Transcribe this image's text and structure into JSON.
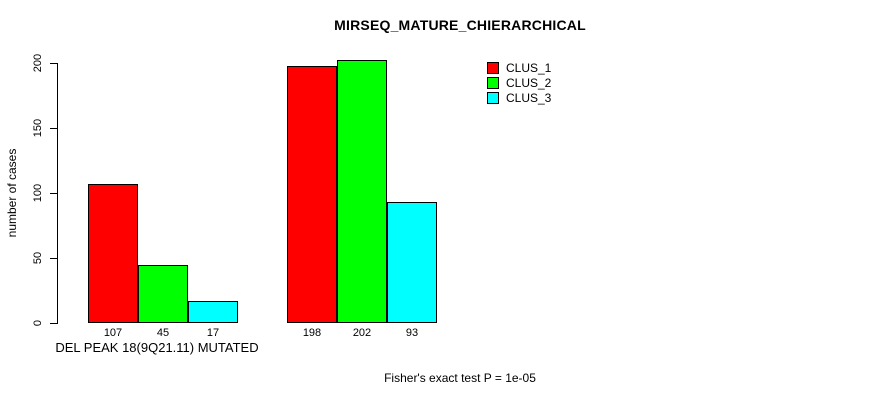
{
  "title": "MIRSEQ_MATURE_CHIERARCHICAL",
  "footnote": "Fisher's exact test P = 1e-05",
  "chart_data": {
    "type": "bar",
    "title": "MIRSEQ_MATURE_CHIERARCHICAL",
    "xlabel": "",
    "ylabel": "number of cases",
    "ylim": [
      0,
      200
    ],
    "yticks": [
      0,
      50,
      100,
      150,
      200
    ],
    "grid": false,
    "legend_position": "top-right",
    "bar_border_color": "#000000",
    "series": [
      {
        "name": "CLUS_1",
        "color": "#ff0000"
      },
      {
        "name": "CLUS_2",
        "color": "#00ff00"
      },
      {
        "name": "CLUS_3",
        "color": "#00ffff"
      }
    ],
    "groups": [
      {
        "label": "DEL PEAK 18(9Q21.11) MUTATED",
        "values": [
          107,
          45,
          17
        ]
      },
      {
        "label": "",
        "values": [
          198,
          202,
          93
        ]
      }
    ],
    "bar_value_labels": [
      107,
      45,
      17,
      198,
      202,
      93
    ],
    "footnote": "Fisher's exact test P = 1e-05"
  }
}
